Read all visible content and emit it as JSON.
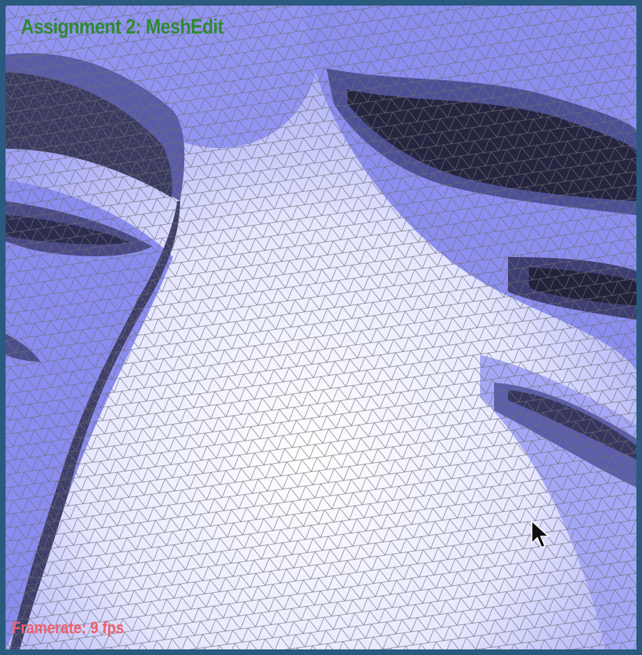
{
  "app": {
    "title": "Assignment 2: MeshEdit"
  },
  "status": {
    "framerate": "Framerate: 9 fps"
  },
  "viewport": {
    "content": "wireframe-mesh",
    "shading_colors": {
      "light": "#f4f4ff",
      "mid": "#8a8cf0",
      "dark": "#24243e",
      "wire": "#6f6f78"
    }
  },
  "colors": {
    "frame": "#2a5a80",
    "title": "#2f8a2f",
    "framerate": "#f0606e"
  },
  "icons": {
    "cursor": "mouse-pointer-icon"
  }
}
